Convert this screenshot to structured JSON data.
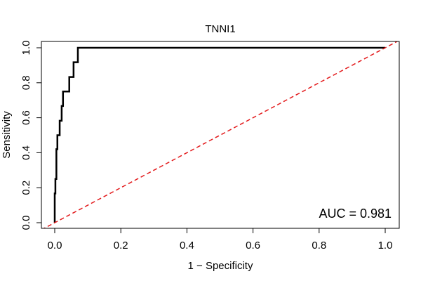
{
  "chart_data": {
    "type": "line",
    "title": "TNNI1",
    "xlabel": "1 − Specificity",
    "ylabel": "Sensitivity",
    "xlim": [
      0,
      1
    ],
    "ylim": [
      0,
      1
    ],
    "x_ticks": [
      0,
      0.2,
      0.4,
      0.6,
      0.8,
      1
    ],
    "x_tick_labels": [
      "0.0",
      "0.2",
      "0.4",
      "0.6",
      "0.8",
      "1.0"
    ],
    "y_ticks": [
      0,
      0.2,
      0.4,
      0.6,
      0.8,
      1
    ],
    "y_tick_labels": [
      "0.0",
      "0.2",
      "0.4",
      "0.6",
      "0.8",
      "1.0"
    ],
    "grid": false,
    "annotation": "AUC = 0.981",
    "series": [
      {
        "color": "#000000",
        "style": "solid",
        "x": [
          0,
          0,
          0.002,
          0.002,
          0.005,
          0.005,
          0.008,
          0.008,
          0.015,
          0.015,
          0.021,
          0.021,
          0.025,
          0.025,
          0.044,
          0.044,
          0.057,
          0.057,
          0.064,
          0.064,
          0.07,
          0.07,
          1.0
        ],
        "y": [
          0,
          0.167,
          0.167,
          0.25,
          0.25,
          0.42,
          0.42,
          0.5,
          0.5,
          0.583,
          0.583,
          0.667,
          0.667,
          0.75,
          0.75,
          0.833,
          0.833,
          0.917,
          0.917,
          0.917,
          0.917,
          1.0,
          1.0
        ]
      },
      {
        "color": "#e31a1c",
        "style": "dashed",
        "x": [
          -0.04,
          1.04
        ],
        "y": [
          -0.04,
          1.04
        ]
      }
    ]
  }
}
